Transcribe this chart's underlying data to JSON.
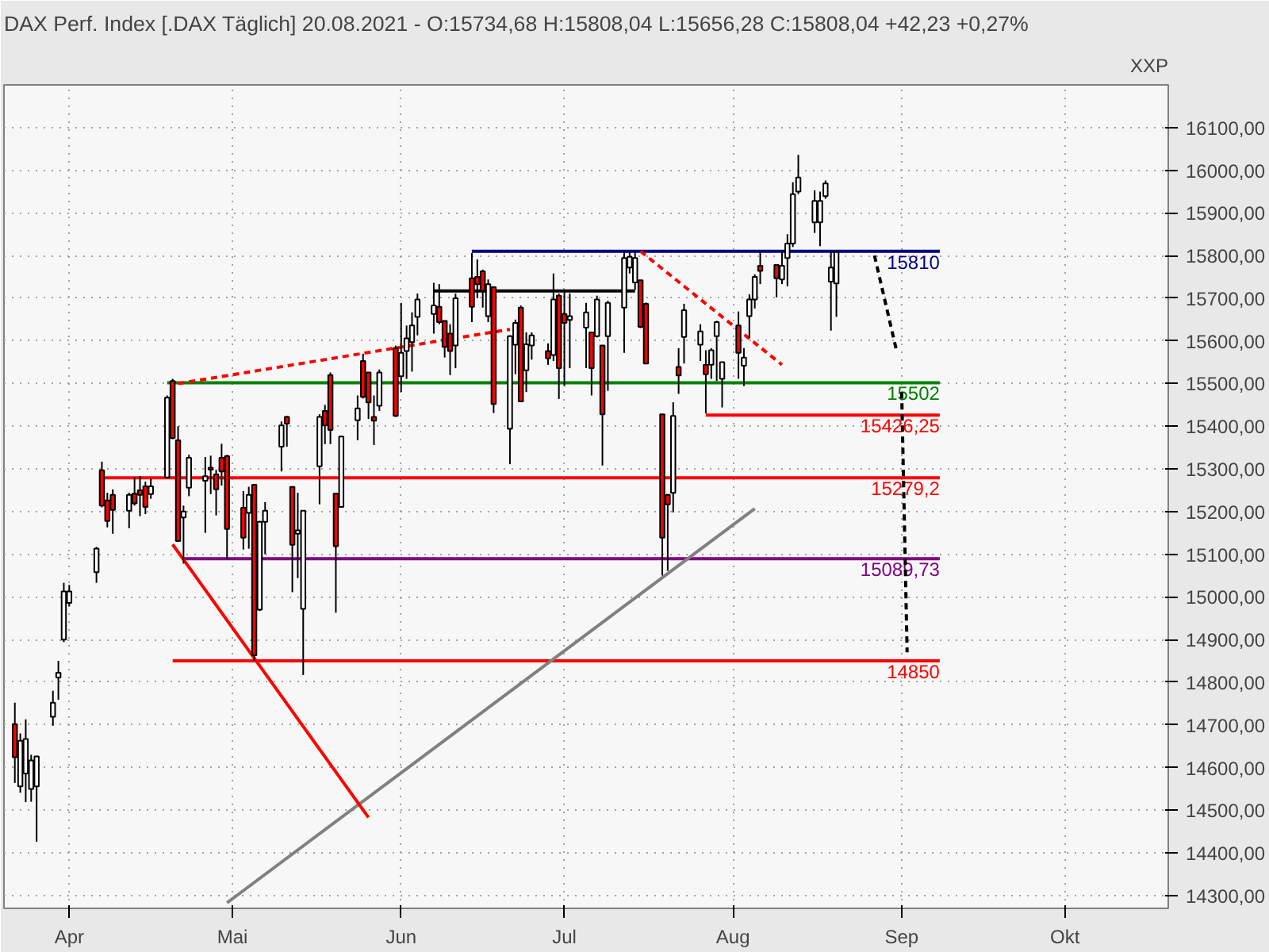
{
  "chart_data": {
    "type": "candlestick",
    "title": "DAX Perf. Index [.DAX  Täglich] 20.08.2021 - O:15734,68 H:15808,04 L:15656,28 C:15808,04 +42,23 +0,27%",
    "ylabel": "XXP",
    "x": [
      "2021-03-22",
      "2021-03-23",
      "2021-03-24",
      "2021-03-25",
      "2021-03-26",
      "2021-03-29",
      "2021-03-30",
      "2021-03-31",
      "2021-04-01",
      "2021-04-06",
      "2021-04-07",
      "2021-04-08",
      "2021-04-09",
      "2021-04-12",
      "2021-04-13",
      "2021-04-14",
      "2021-04-15",
      "2021-04-16",
      "2021-04-19",
      "2021-04-20",
      "2021-04-21",
      "2021-04-22",
      "2021-04-23",
      "2021-04-26",
      "2021-04-27",
      "2021-04-28",
      "2021-04-29",
      "2021-04-30",
      "2021-05-03",
      "2021-05-04",
      "2021-05-05",
      "2021-05-06",
      "2021-05-07",
      "2021-05-10",
      "2021-05-11",
      "2021-05-12",
      "2021-05-13",
      "2021-05-14",
      "2021-05-17",
      "2021-05-18",
      "2021-05-19",
      "2021-05-20",
      "2021-05-21",
      "2021-05-24",
      "2021-05-25",
      "2021-05-26",
      "2021-05-27",
      "2021-05-28",
      "2021-05-31",
      "2021-06-01",
      "2021-06-02",
      "2021-06-03",
      "2021-06-04",
      "2021-06-07",
      "2021-06-08",
      "2021-06-09",
      "2021-06-10",
      "2021-06-11",
      "2021-06-14",
      "2021-06-15",
      "2021-06-16",
      "2021-06-17",
      "2021-06-18",
      "2021-06-21",
      "2021-06-22",
      "2021-06-23",
      "2021-06-24",
      "2021-06-25",
      "2021-06-28",
      "2021-06-29",
      "2021-06-30",
      "2021-07-01",
      "2021-07-02",
      "2021-07-05",
      "2021-07-06",
      "2021-07-07",
      "2021-07-08",
      "2021-07-09",
      "2021-07-12",
      "2021-07-13",
      "2021-07-14",
      "2021-07-15",
      "2021-07-16",
      "2021-07-19",
      "2021-07-20",
      "2021-07-21",
      "2021-07-22",
      "2021-07-23",
      "2021-07-26",
      "2021-07-27",
      "2021-07-28",
      "2021-07-29",
      "2021-07-30",
      "2021-08-02",
      "2021-08-03",
      "2021-08-04",
      "2021-08-05",
      "2021-08-06",
      "2021-08-09",
      "2021-08-10",
      "2021-08-11",
      "2021-08-12",
      "2021-08-13",
      "2021-08-16",
      "2021-08-17",
      "2021-08-18",
      "2021-08-19",
      "2021-08-20"
    ],
    "ohlc": [
      [
        14702,
        14752,
        14564,
        14624
      ],
      [
        14556,
        14680,
        14541,
        14663
      ],
      [
        14586,
        14713,
        14519,
        14667
      ],
      [
        14550,
        14630,
        14520,
        14617
      ],
      [
        14556,
        14626,
        14426,
        14626
      ],
      [
        14719,
        14780,
        14698,
        14752
      ],
      [
        14811,
        14850,
        14759,
        14822
      ],
      [
        14900,
        15033,
        14894,
        15013
      ],
      [
        14986,
        15028,
        14978,
        15013
      ],
      [
        15058,
        15117,
        15033,
        15113
      ],
      [
        15297,
        15317,
        15210,
        15214
      ],
      [
        15226,
        15244,
        15163,
        15178
      ],
      [
        15239,
        15252,
        15148,
        15204
      ],
      [
        15202,
        15244,
        15161,
        15239
      ],
      [
        15242,
        15280,
        15214,
        15219
      ],
      [
        15250,
        15283,
        15189,
        15239
      ],
      [
        15259,
        15270,
        15194,
        15211
      ],
      [
        15241,
        15278,
        15230,
        15259
      ],
      [
        15280,
        15472,
        15278,
        15467
      ],
      [
        15506,
        15511,
        15370,
        15372
      ],
      [
        15367,
        15400,
        15131,
        15131
      ],
      [
        15186,
        15214,
        15078,
        15200
      ],
      [
        15256,
        15333,
        15236,
        15326
      ],
      [
        15272,
        15328,
        15150,
        15283
      ],
      [
        15303,
        15331,
        15241,
        15298
      ],
      [
        15287,
        15298,
        15191,
        15252
      ],
      [
        15326,
        15359,
        15261,
        15294
      ],
      [
        15330,
        15333,
        15089,
        15159
      ],
      [
        15209,
        15248,
        15111,
        15139
      ],
      [
        15197,
        15258,
        15113,
        15239
      ],
      [
        15263,
        15263,
        14850,
        14863
      ],
      [
        14970,
        15178,
        14967,
        15176
      ],
      [
        15176,
        15222,
        15100,
        15202
      ],
      [
        15352,
        15411,
        15294,
        15402
      ],
      [
        15422,
        15424,
        15352,
        15406
      ],
      [
        15258,
        15258,
        15011,
        15122
      ],
      [
        15148,
        15244,
        15044,
        15156
      ],
      [
        14972,
        15202,
        14817,
        15202
      ],
      [
        15306,
        15428,
        15217,
        15422
      ],
      [
        15436,
        15450,
        15358,
        15402
      ],
      [
        15520,
        15526,
        15358,
        15391
      ],
      [
        15242,
        15242,
        14963,
        15119
      ],
      [
        15211,
        15376,
        15211,
        15376
      ],
      [
        15414,
        15472,
        15367,
        15442
      ],
      [
        15553,
        15570,
        15465,
        15469
      ],
      [
        15526,
        15526,
        15417,
        15456
      ],
      [
        15422,
        15472,
        15356,
        15413
      ],
      [
        15448,
        15533,
        15436,
        15526
      ],
      [
        15583,
        15589,
        15422,
        15424
      ],
      [
        15517,
        15689,
        15480,
        15572
      ],
      [
        15576,
        15636,
        15511,
        15606
      ],
      [
        15597,
        15667,
        15528,
        15636
      ],
      [
        15656,
        15711,
        15613,
        15697
      ],
      [
        15663,
        15736,
        15617,
        15683
      ],
      [
        15680,
        15733,
        15639,
        15644
      ],
      [
        15647,
        15647,
        15561,
        15586
      ],
      [
        15617,
        15639,
        15520,
        15576
      ],
      [
        15589,
        15711,
        15536,
        15700
      ],
      [
        15747,
        15806,
        15644,
        15680
      ],
      [
        15750,
        15791,
        15700,
        15733
      ],
      [
        15763,
        15767,
        15678,
        15717
      ],
      [
        15658,
        15744,
        15644,
        15733
      ],
      [
        15726,
        15726,
        15431,
        15452
      ],
      [
        15394,
        15613,
        15311,
        15611
      ],
      [
        15591,
        15650,
        15522,
        15642
      ],
      [
        15678,
        15683,
        15458,
        15458
      ],
      [
        15531,
        15620,
        15480,
        15592
      ],
      [
        15589,
        15620,
        15556,
        15613
      ],
      [
        15576,
        15594,
        15544,
        15559
      ],
      [
        15567,
        15758,
        15553,
        15697
      ],
      [
        15706,
        15711,
        15464,
        15536
      ],
      [
        15663,
        15717,
        15494,
        15642
      ],
      [
        15649,
        15711,
        15536,
        15658
      ],
      [
        15631,
        15689,
        15536,
        15667
      ],
      [
        15620,
        15620,
        15472,
        15536
      ],
      [
        15611,
        15706,
        15608,
        15697
      ],
      [
        15589,
        15589,
        15308,
        15428
      ],
      [
        15611,
        15694,
        15483,
        15689
      ],
      [
        15678,
        15809,
        15572,
        15794
      ],
      [
        15772,
        15809,
        15758,
        15797
      ],
      [
        15737,
        15811,
        15720,
        15794
      ],
      [
        15742,
        15742,
        15630,
        15633
      ],
      [
        15687,
        15690,
        15547,
        15547
      ],
      [
        15428,
        15428,
        15050,
        15139
      ],
      [
        15239,
        15239,
        15061,
        15217
      ],
      [
        15244,
        15456,
        15198,
        15424
      ],
      [
        15539,
        15583,
        15476,
        15519
      ],
      [
        15609,
        15687,
        15547,
        15672
      ],
      [
        15591,
        15639,
        15553,
        15622
      ],
      [
        15544,
        15578,
        15430,
        15522
      ],
      [
        15544,
        15583,
        15511,
        15578
      ],
      [
        15611,
        15647,
        15506,
        15644
      ],
      [
        15511,
        15550,
        15444,
        15550
      ],
      [
        15636,
        15669,
        15511,
        15572
      ],
      [
        15542,
        15583,
        15494,
        15561
      ],
      [
        15658,
        15709,
        15606,
        15697
      ],
      [
        15697,
        15756,
        15676,
        15750
      ],
      [
        15776,
        15809,
        15733,
        15764
      ],
      [
        15778,
        15780,
        15702,
        15747
      ],
      [
        15744,
        15811,
        15733,
        15776
      ],
      [
        15794,
        15850,
        15728,
        15828
      ],
      [
        15828,
        15972,
        15820,
        15944
      ],
      [
        15950,
        16036,
        15944,
        15983
      ],
      [
        15878,
        15953,
        15853,
        15928
      ],
      [
        15878,
        15950,
        15822,
        15928
      ],
      [
        15939,
        15976,
        15933,
        15969
      ],
      [
        15739,
        15809,
        15624,
        15772
      ],
      [
        15734.68,
        15808.04,
        15656.28,
        15808.04
      ]
    ],
    "colors": [
      "#ff0000",
      "#ffffff",
      "#ffffff",
      "#ffffff",
      "#ffffff",
      "#ffffff",
      "#ffffff",
      "#ffffff",
      "#ffffff",
      "#ffffff",
      "#ff0000",
      "#ff0000",
      "#ff0000",
      "#ffffff",
      "#ff0000",
      "#ff0000",
      "#ff0000",
      "#ffffff",
      "#ffffff",
      "#ff0000",
      "#ff0000",
      "#ffffff",
      "#ffffff",
      "#ffffff",
      "#ff0000",
      "#ff0000",
      "#ff0000",
      "#ff0000",
      "#ff0000",
      "#ffffff",
      "#ff0000",
      "#ffffff",
      "#ffffff",
      "#ffffff",
      "#ff0000",
      "#ff0000",
      "#ffffff",
      "#ffffff",
      "#ffffff",
      "#ff0000",
      "#ff0000",
      "#ff0000",
      "#ffffff",
      "#ffffff",
      "#ff0000",
      "#ff0000",
      "#ff0000",
      "#ffffff",
      "#ff0000",
      "#ffffff",
      "#ffffff",
      "#ffffff",
      "#ffffff",
      "#ffffff",
      "#ff0000",
      "#ff0000",
      "#ff0000",
      "#ffffff",
      "#ff0000",
      "#ff0000",
      "#ff0000",
      "#ffffff",
      "#ff0000",
      "#ffffff",
      "#ffffff",
      "#ff0000",
      "#ffffff",
      "#ffffff",
      "#ff0000",
      "#ffffff",
      "#ff0000",
      "#ff0000",
      "#ffffff",
      "#ffffff",
      "#ff0000",
      "#ffffff",
      "#ff0000",
      "#ffffff",
      "#ffffff",
      "#ffffff",
      "#ffffff",
      "#ff0000",
      "#ff0000",
      "#ff0000",
      "#ff0000",
      "#ffffff",
      "#ff0000",
      "#ffffff",
      "#ffffff",
      "#ff0000",
      "#ffffff",
      "#ffffff",
      "#ffffff",
      "#ff0000",
      "#ffffff",
      "#ffffff",
      "#ffffff",
      "#ff0000",
      "#ff0000",
      "#ffffff",
      "#ffffff",
      "#ffffff",
      "#ffffff",
      "#ffffff",
      "#ffffff",
      "#ffffff",
      "#ffffff",
      "#ffffff"
    ],
    "series": [
      {
        "type": "line",
        "name": "15810",
        "color": "#000080",
        "x": [
          "2021-06-14",
          "2021-09-08"
        ],
        "values": [
          15810,
          15810
        ]
      },
      {
        "type": "line",
        "name": "15502",
        "color": "#008000",
        "x": [
          "2021-04-19",
          "2021-09-08"
        ],
        "values": [
          15502,
          15502
        ]
      },
      {
        "type": "line",
        "name": "15426,25",
        "color": "#ff0000",
        "x": [
          "2021-07-27",
          "2021-09-08"
        ],
        "values": [
          15426.25,
          15426.25
        ]
      },
      {
        "type": "line",
        "name": "15279,2",
        "color": "#ff0000",
        "x": [
          "2021-04-07",
          "2021-09-08"
        ],
        "values": [
          15279.2,
          15279.2
        ]
      },
      {
        "type": "line",
        "name": "15089,73",
        "color": "#800080",
        "x": [
          "2021-04-22",
          "2021-09-08"
        ],
        "values": [
          15089.73,
          15089.73
        ]
      },
      {
        "type": "line",
        "name": "14850",
        "color": "#ff0000",
        "x": [
          "2021-04-20",
          "2021-09-08"
        ],
        "values": [
          14850,
          14850
        ]
      },
      {
        "type": "line",
        "color": "#808080",
        "x": [
          "2021-04-30",
          "2021-08-05"
        ],
        "values": [
          14283,
          15207
        ]
      },
      {
        "type": "line",
        "color": "#ff0000",
        "x": [
          "2021-04-20",
          "2021-05-26"
        ],
        "values": [
          15123,
          14483
        ]
      },
      {
        "type": "line",
        "color": "#ff0000",
        "line_style": "dashed",
        "x": [
          "2021-04-21",
          "2021-06-21"
        ],
        "values": [
          15500,
          15627
        ]
      },
      {
        "type": "line",
        "color": "#ff0000",
        "line_style": "dashed",
        "x": [
          "2021-07-15",
          "2021-08-10"
        ],
        "values": [
          15810,
          15544
        ]
      },
      {
        "type": "line",
        "color": "#000000",
        "x": [
          "2021-06-07",
          "2021-07-14"
        ],
        "values": [
          15717,
          15717
        ]
      },
      {
        "type": "line",
        "color": "#000000",
        "line_style": "dashed",
        "x": [
          "2021-08-27",
          "2021-08-31"
        ],
        "values": [
          15800,
          15580
        ]
      },
      {
        "type": "line",
        "color": "#000000",
        "line_style": "dashed",
        "x": [
          "2021-09-01",
          "2021-09-02"
        ],
        "values": [
          15480,
          14870
        ]
      }
    ],
    "xlim": [
      "2021-03-20",
      "2021-10-20"
    ],
    "xticks": [
      {
        "value": "2021-04-01",
        "label": "Apr"
      },
      {
        "value": "2021-05-01",
        "label": "Mai"
      },
      {
        "value": "2021-06-01",
        "label": "Jun"
      },
      {
        "value": "2021-07-01",
        "label": "Jul"
      },
      {
        "value": "2021-08-01",
        "label": "Aug"
      },
      {
        "value": "2021-09-01",
        "label": "Sep"
      },
      {
        "value": "2021-10-01",
        "label": "Okt"
      }
    ],
    "ylim": [
      14270,
      16200
    ],
    "yticks": [
      {
        "value": 14300,
        "label": "14300,00"
      },
      {
        "value": 14400,
        "label": "14400,00"
      },
      {
        "value": 14500,
        "label": "14500,00"
      },
      {
        "value": 14600,
        "label": "14600,00"
      },
      {
        "value": 14700,
        "label": "14700,00"
      },
      {
        "value": 14800,
        "label": "14800,00"
      },
      {
        "value": 14900,
        "label": "14900,00"
      },
      {
        "value": 15000,
        "label": "15000,00"
      },
      {
        "value": 15100,
        "label": "15100,00"
      },
      {
        "value": 15200,
        "label": "15200,00"
      },
      {
        "value": 15300,
        "label": "15300,00"
      },
      {
        "value": 15400,
        "label": "15400,00"
      },
      {
        "value": 15500,
        "label": "15500,00"
      },
      {
        "value": 15600,
        "label": "15600,00"
      },
      {
        "value": 15700,
        "label": "15700,00"
      },
      {
        "value": 15800,
        "label": "15800,00"
      },
      {
        "value": 15900,
        "label": "15900,00"
      },
      {
        "value": 16000,
        "label": "16000,00"
      },
      {
        "value": 16100,
        "label": "16100,00"
      }
    ],
    "grid": true
  }
}
